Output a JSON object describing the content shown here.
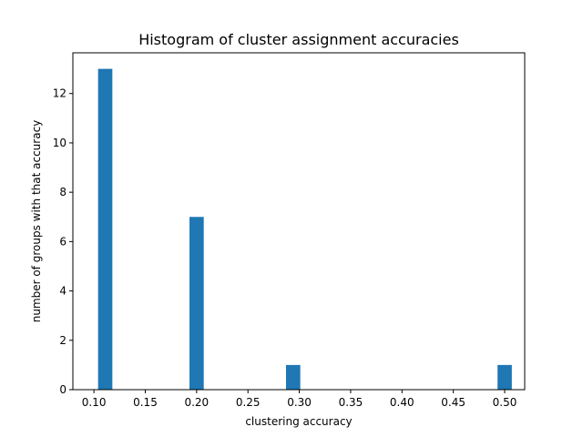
{
  "chart_data": {
    "type": "bar",
    "title": "Histogram of cluster assignment accuracies",
    "xlabel": "clustering accuracy",
    "ylabel": "number of groups with that accuracy",
    "bars": [
      {
        "x": 0.111,
        "value": 13
      },
      {
        "x": 0.2,
        "value": 7
      },
      {
        "x": 0.294,
        "value": 1
      },
      {
        "x": 0.5,
        "value": 1
      }
    ],
    "bar_width": 0.0139,
    "xlim": [
      0.0795,
      0.5195
    ],
    "ylim": [
      0,
      13.65
    ],
    "xticks": [
      0.1,
      0.15,
      0.2,
      0.25,
      0.3,
      0.35,
      0.4,
      0.45,
      0.5
    ],
    "xtick_labels": [
      "0.10",
      "0.15",
      "0.20",
      "0.25",
      "0.30",
      "0.35",
      "0.40",
      "0.45",
      "0.50"
    ],
    "yticks": [
      0,
      2,
      4,
      6,
      8,
      10,
      12
    ],
    "ytick_labels": [
      "0",
      "2",
      "4",
      "6",
      "8",
      "10",
      "12"
    ],
    "grid": false,
    "bar_color": "#1f77b4"
  }
}
